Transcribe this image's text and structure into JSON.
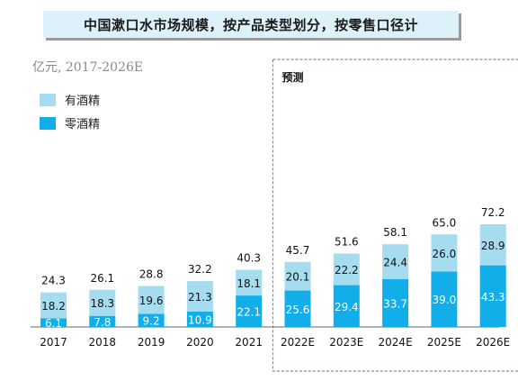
{
  "title": "中国漱口水市场规模，按产品类型划分，按零售口径计",
  "unit_note": "亿元, 2017-2026E",
  "forecast_label": "预测",
  "colors": {
    "alcohol": "#a6dcf0",
    "alcohol_free": "#12aee9",
    "title_bg": "#dcf1f9",
    "forecast_border": "#7b8ea3"
  },
  "chart_data": {
    "type": "bar",
    "stacked": true,
    "categories": [
      "2017",
      "2018",
      "2019",
      "2020",
      "2021",
      "2022E",
      "2023E",
      "2024E",
      "2025E",
      "2026E"
    ],
    "series": [
      {
        "name": "零酒精",
        "values": [
          6.1,
          7.8,
          9.2,
          10.9,
          22.1,
          25.6,
          29.4,
          33.7,
          39.0,
          43.3
        ]
      },
      {
        "name": "有酒精",
        "values": [
          18.2,
          18.3,
          19.6,
          21.3,
          18.1,
          20.1,
          22.2,
          24.4,
          26.0,
          28.9
        ]
      }
    ],
    "totals": [
      24.3,
      26.1,
      28.8,
      32.2,
      40.3,
      45.7,
      51.6,
      58.1,
      65.0,
      72.2
    ],
    "legend": [
      "有酒精",
      "零酒精"
    ],
    "legend_placement": "top-left",
    "forecast_categories": [
      "2022E",
      "2023E",
      "2024E",
      "2025E",
      "2026E"
    ]
  }
}
